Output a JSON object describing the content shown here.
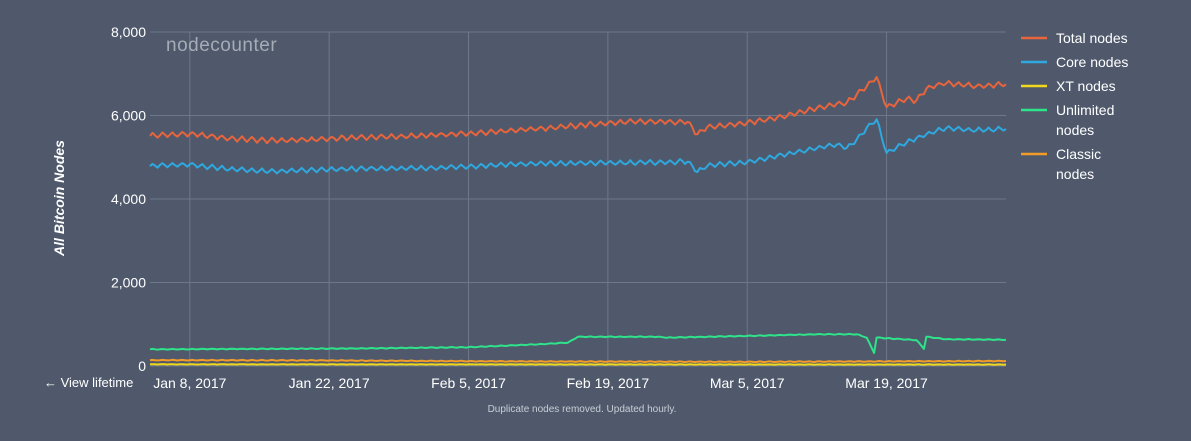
{
  "watermark": "nodecounter",
  "nav": {
    "view_lifetime": "← View lifetime"
  },
  "footer": "Duplicate nodes removed. Updated hourly.",
  "chart_data": {
    "type": "line",
    "ylabel": "All Bitcoin Nodes",
    "ylim": [
      0,
      8000
    ],
    "yticks": [
      0,
      2000,
      4000,
      6000,
      8000
    ],
    "ytick_labels": [
      "0",
      "2,000",
      "4,000",
      "6,000",
      "8,000"
    ],
    "xlim": [
      "2017-01-04",
      "2017-03-31"
    ],
    "xticks": [
      "2017-01-08",
      "2017-01-22",
      "2017-02-05",
      "2017-02-19",
      "2017-03-05",
      "2017-03-19"
    ],
    "xtick_labels": [
      "Jan 8, 2017",
      "Jan 22, 2017",
      "Feb 5, 2017",
      "Feb 19, 2017",
      "Mar 5, 2017",
      "Mar 19, 2017"
    ],
    "grid": true,
    "legend": "right",
    "series": [
      {
        "name": "Total nodes",
        "color": "#e8643c",
        "points": [
          [
            "2017-01-04",
            5520
          ],
          [
            "2017-01-08",
            5560
          ],
          [
            "2017-01-12",
            5450
          ],
          [
            "2017-01-16",
            5400
          ],
          [
            "2017-01-20",
            5420
          ],
          [
            "2017-01-24",
            5470
          ],
          [
            "2017-01-28",
            5490
          ],
          [
            "2017-02-01",
            5520
          ],
          [
            "2017-02-05",
            5570
          ],
          [
            "2017-02-09",
            5640
          ],
          [
            "2017-02-13",
            5700
          ],
          [
            "2017-02-17",
            5780
          ],
          [
            "2017-02-21",
            5850
          ],
          [
            "2017-02-25",
            5850
          ],
          [
            "2017-02-27",
            5850
          ],
          [
            "2017-02-28",
            5540
          ],
          [
            "2017-03-01",
            5720
          ],
          [
            "2017-03-05",
            5820
          ],
          [
            "2017-03-09",
            6000
          ],
          [
            "2017-03-12",
            6180
          ],
          [
            "2017-03-14",
            6280
          ],
          [
            "2017-03-15",
            6300
          ],
          [
            "2017-03-16",
            6500
          ],
          [
            "2017-03-17",
            6700
          ],
          [
            "2017-03-18",
            6920
          ],
          [
            "2017-03-19",
            6200
          ],
          [
            "2017-03-21",
            6400
          ],
          [
            "2017-03-22",
            6350
          ],
          [
            "2017-03-23",
            6650
          ],
          [
            "2017-03-25",
            6780
          ],
          [
            "2017-03-28",
            6700
          ],
          [
            "2017-03-31",
            6750
          ]
        ]
      },
      {
        "name": "Core nodes",
        "color": "#2fa8df",
        "points": [
          [
            "2017-01-04",
            4800
          ],
          [
            "2017-01-08",
            4820
          ],
          [
            "2017-01-12",
            4720
          ],
          [
            "2017-01-16",
            4660
          ],
          [
            "2017-01-20",
            4690
          ],
          [
            "2017-01-24",
            4720
          ],
          [
            "2017-01-28",
            4730
          ],
          [
            "2017-02-01",
            4740
          ],
          [
            "2017-02-05",
            4780
          ],
          [
            "2017-02-09",
            4830
          ],
          [
            "2017-02-13",
            4850
          ],
          [
            "2017-02-17",
            4860
          ],
          [
            "2017-02-21",
            4870
          ],
          [
            "2017-02-25",
            4880
          ],
          [
            "2017-02-27",
            4900
          ],
          [
            "2017-02-28",
            4650
          ],
          [
            "2017-03-01",
            4800
          ],
          [
            "2017-03-05",
            4880
          ],
          [
            "2017-03-09",
            5080
          ],
          [
            "2017-03-12",
            5220
          ],
          [
            "2017-03-14",
            5300
          ],
          [
            "2017-03-15",
            5220
          ],
          [
            "2017-03-16",
            5420
          ],
          [
            "2017-03-17",
            5700
          ],
          [
            "2017-03-18",
            5900
          ],
          [
            "2017-03-19",
            5100
          ],
          [
            "2017-03-21",
            5350
          ],
          [
            "2017-03-23",
            5550
          ],
          [
            "2017-03-25",
            5700
          ],
          [
            "2017-03-28",
            5650
          ],
          [
            "2017-03-31",
            5680
          ]
        ]
      },
      {
        "name": "XT nodes",
        "color": "#f0d91d",
        "points": [
          [
            "2017-01-04",
            40
          ],
          [
            "2017-02-05",
            38
          ],
          [
            "2017-03-05",
            36
          ],
          [
            "2017-03-31",
            35
          ]
        ]
      },
      {
        "name": "Unlimited nodes",
        "color": "#2ee38a",
        "points": [
          [
            "2017-01-04",
            400
          ],
          [
            "2017-01-15",
            410
          ],
          [
            "2017-01-25",
            420
          ],
          [
            "2017-02-05",
            450
          ],
          [
            "2017-02-12",
            520
          ],
          [
            "2017-02-15",
            560
          ],
          [
            "2017-02-16",
            700
          ],
          [
            "2017-02-24",
            700
          ],
          [
            "2017-02-25",
            680
          ],
          [
            "2017-03-05",
            720
          ],
          [
            "2017-03-12",
            760
          ],
          [
            "2017-03-16",
            760
          ],
          [
            "2017-03-17",
            680
          ],
          [
            "2017-03-18",
            200
          ],
          [
            "2017-03-18",
            680
          ],
          [
            "2017-03-22",
            620
          ],
          [
            "2017-03-23",
            350
          ],
          [
            "2017-03-23",
            700
          ],
          [
            "2017-03-25",
            640
          ],
          [
            "2017-03-31",
            630
          ]
        ]
      },
      {
        "name": "Classic nodes",
        "color": "#f39c2a",
        "points": [
          [
            "2017-01-04",
            140
          ],
          [
            "2017-01-20",
            135
          ],
          [
            "2017-02-10",
            110
          ],
          [
            "2017-03-05",
            100
          ],
          [
            "2017-03-18",
            110
          ],
          [
            "2017-03-31",
            120
          ]
        ]
      }
    ]
  }
}
